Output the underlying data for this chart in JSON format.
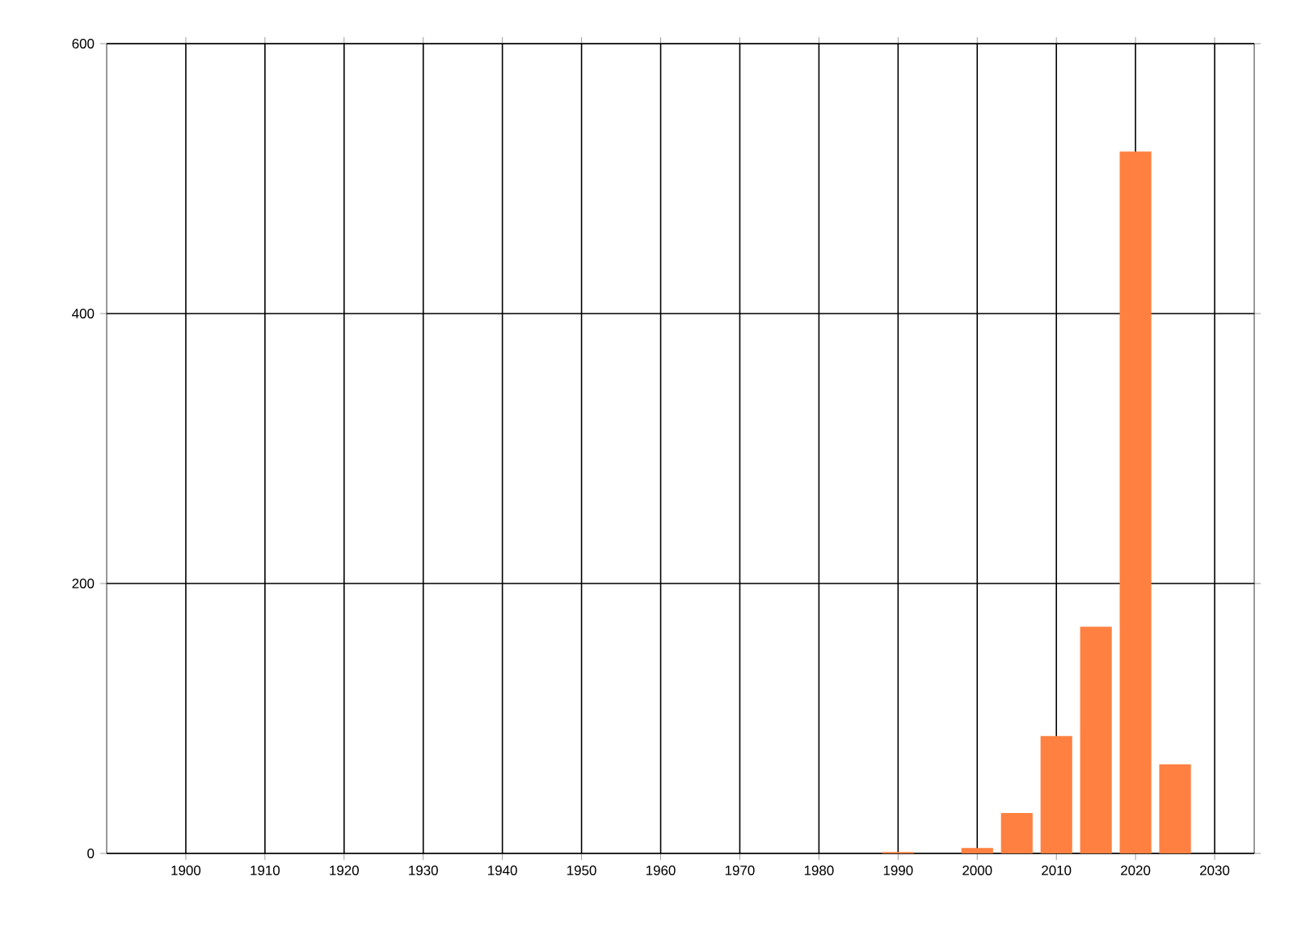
{
  "chart_data": {
    "type": "bar",
    "x": [
      1990,
      2000,
      2005,
      2010,
      2015,
      2020,
      2025
    ],
    "values": [
      1,
      4,
      30,
      87,
      168,
      520,
      66
    ],
    "color": "#ff8040",
    "xlim": [
      1890,
      2035
    ],
    "xticks": [
      1900,
      1910,
      1920,
      1930,
      1940,
      1950,
      1960,
      1970,
      1980,
      1990,
      2000,
      2010,
      2020,
      2030
    ],
    "ylim": [
      0,
      600
    ],
    "yticks": [
      0,
      200,
      400,
      600
    ],
    "grid": true
  }
}
